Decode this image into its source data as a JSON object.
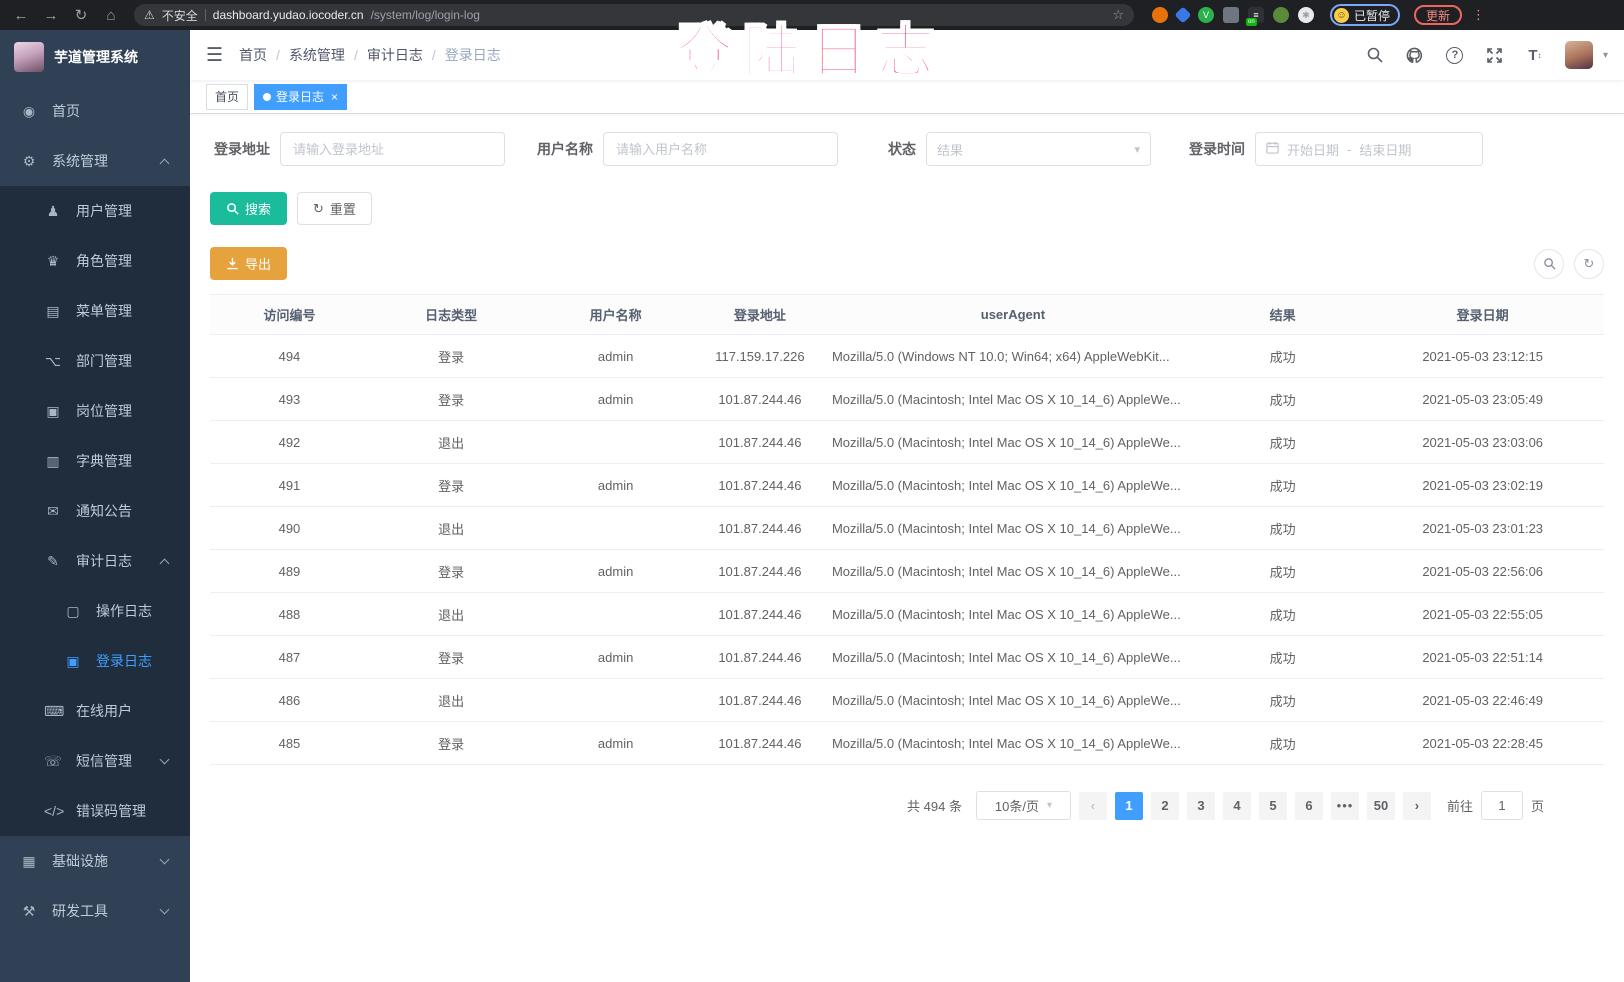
{
  "browser": {
    "back": "←",
    "forward": "→",
    "reload": "↻",
    "home": "⌂",
    "security_warning": "不安全",
    "url_domain": "dashboard.yudao.iocoder.cn",
    "url_path": "/system/log/login-log",
    "star": "☆",
    "extensions": [
      {
        "name": "orange-circle-extension-icon",
        "shape": "circle",
        "color": "#e8710a",
        "glyph": ""
      },
      {
        "name": "blue-diamond-extension-icon",
        "shape": "diamond",
        "color": "#3b78e7",
        "glyph": ""
      },
      {
        "name": "green-v-extension-icon",
        "shape": "circle",
        "color": "#2bb24c",
        "glyph": "V"
      },
      {
        "name": "grid-extension-icon",
        "shape": "square",
        "color": "#6f7680",
        "glyph": ""
      },
      {
        "name": "list-on-extension-icon",
        "shape": "square",
        "color": "#2d3136",
        "glyph": "≡",
        "badge": "on"
      },
      {
        "name": "leaf-extension-icon",
        "shape": "circle",
        "color": "#5b8a3c",
        "glyph": ""
      },
      {
        "name": "paw-extension-icon",
        "shape": "circle",
        "color": "#e8eaed",
        "glyph": "✱"
      }
    ],
    "profile_chip": "已暂停",
    "profile_face": "☺",
    "update_button": "更新",
    "menu_dots": "⋮"
  },
  "overlay": {
    "text": "登陆日志"
  },
  "sidebar": {
    "logo_title": "芋道管理系统",
    "icon_glyphs": {
      "dashboard-icon": "◉",
      "gear-icon": "⚙",
      "user-icon": "♟",
      "peoples-icon": "♛",
      "tree-table-icon": "▤",
      "tree-icon": "⌥",
      "post-icon": "▣",
      "dict-icon": "▥",
      "message-icon": "✉",
      "log-icon": "✎",
      "form-icon": "▢",
      "logininfor-icon": "▣",
      "online-icon": "⌨",
      "sms-icon": "☏",
      "code-icon": "</>",
      "infra-icon": "▦",
      "tool-icon": "⚒"
    },
    "items": [
      {
        "id": "home",
        "icon": "dashboard-icon",
        "label": "首页",
        "level": 1
      },
      {
        "id": "system",
        "icon": "gear-icon",
        "label": "系统管理",
        "level": 1,
        "chevron": "up"
      },
      {
        "id": "user",
        "icon": "user-icon",
        "label": "用户管理",
        "level": 2
      },
      {
        "id": "role",
        "icon": "peoples-icon",
        "label": "角色管理",
        "level": 2
      },
      {
        "id": "menu",
        "icon": "tree-table-icon",
        "label": "菜单管理",
        "level": 2
      },
      {
        "id": "dept",
        "icon": "tree-icon",
        "label": "部门管理",
        "level": 2
      },
      {
        "id": "post",
        "icon": "post-icon",
        "label": "岗位管理",
        "level": 2
      },
      {
        "id": "dict",
        "icon": "dict-icon",
        "label": "字典管理",
        "level": 2
      },
      {
        "id": "notice",
        "icon": "message-icon",
        "label": "通知公告",
        "level": 2
      },
      {
        "id": "audit-log",
        "icon": "log-icon",
        "label": "审计日志",
        "level": 2,
        "chevron": "up"
      },
      {
        "id": "operate-log",
        "icon": "form-icon",
        "label": "操作日志",
        "level": 3
      },
      {
        "id": "login-log",
        "icon": "logininfor-icon",
        "label": "登录日志",
        "level": 3,
        "active": true
      },
      {
        "id": "online-user",
        "icon": "online-icon",
        "label": "在线用户",
        "level": 2
      },
      {
        "id": "sms",
        "icon": "sms-icon",
        "label": "短信管理",
        "level": 2,
        "chevron": "down"
      },
      {
        "id": "error-code",
        "icon": "code-icon",
        "label": "错误码管理",
        "level": 2
      },
      {
        "id": "infra",
        "icon": "infra-icon",
        "label": "基础设施",
        "level": 1,
        "chevron": "down"
      },
      {
        "id": "dev-tool",
        "icon": "tool-icon",
        "label": "研发工具",
        "level": 1,
        "chevron": "down"
      }
    ]
  },
  "breadcrumb": {
    "items": [
      "首页",
      "系统管理",
      "审计日志",
      "登录日志"
    ]
  },
  "tabs": [
    {
      "label": "首页",
      "active": false
    },
    {
      "label": "登录日志",
      "active": true,
      "closable": true
    }
  ],
  "filters": {
    "login_address_label": "登录地址",
    "login_address_placeholder": "请输入登录地址",
    "username_label": "用户名称",
    "username_placeholder": "请输入用户名称",
    "status_label": "状态",
    "status_placeholder": "结果",
    "login_time_label": "登录时间",
    "date_start_placeholder": "开始日期",
    "date_separator": "-",
    "date_end_placeholder": "结束日期",
    "search_button": "搜索",
    "reset_button": "重置",
    "export_button": "导出"
  },
  "table": {
    "columns": [
      "访问编号",
      "日志类型",
      "用户名称",
      "登录地址",
      "userAgent",
      "结果",
      "登录日期"
    ],
    "rows": [
      [
        "494",
        "登录",
        "admin",
        "117.159.17.226",
        "Mozilla/5.0 (Windows NT 10.0; Win64; x64) AppleWebKit...",
        "成功",
        "2021-05-03 23:12:15"
      ],
      [
        "493",
        "登录",
        "admin",
        "101.87.244.46",
        "Mozilla/5.0 (Macintosh; Intel Mac OS X 10_14_6) AppleWe...",
        "成功",
        "2021-05-03 23:05:49"
      ],
      [
        "492",
        "退出",
        "",
        "101.87.244.46",
        "Mozilla/5.0 (Macintosh; Intel Mac OS X 10_14_6) AppleWe...",
        "成功",
        "2021-05-03 23:03:06"
      ],
      [
        "491",
        "登录",
        "admin",
        "101.87.244.46",
        "Mozilla/5.0 (Macintosh; Intel Mac OS X 10_14_6) AppleWe...",
        "成功",
        "2021-05-03 23:02:19"
      ],
      [
        "490",
        "退出",
        "",
        "101.87.244.46",
        "Mozilla/5.0 (Macintosh; Intel Mac OS X 10_14_6) AppleWe...",
        "成功",
        "2021-05-03 23:01:23"
      ],
      [
        "489",
        "登录",
        "admin",
        "101.87.244.46",
        "Mozilla/5.0 (Macintosh; Intel Mac OS X 10_14_6) AppleWe...",
        "成功",
        "2021-05-03 22:56:06"
      ],
      [
        "488",
        "退出",
        "",
        "101.87.244.46",
        "Mozilla/5.0 (Macintosh; Intel Mac OS X 10_14_6) AppleWe...",
        "成功",
        "2021-05-03 22:55:05"
      ],
      [
        "487",
        "登录",
        "admin",
        "101.87.244.46",
        "Mozilla/5.0 (Macintosh; Intel Mac OS X 10_14_6) AppleWe...",
        "成功",
        "2021-05-03 22:51:14"
      ],
      [
        "486",
        "退出",
        "",
        "101.87.244.46",
        "Mozilla/5.0 (Macintosh; Intel Mac OS X 10_14_6) AppleWe...",
        "成功",
        "2021-05-03 22:46:49"
      ],
      [
        "485",
        "登录",
        "admin",
        "101.87.244.46",
        "Mozilla/5.0 (Macintosh; Intel Mac OS X 10_14_6) AppleWe...",
        "成功",
        "2021-05-03 22:28:45"
      ]
    ]
  },
  "pagination": {
    "total": "共 494 条",
    "page_size": "10条/页",
    "prev": "‹",
    "next": "›",
    "pages": [
      {
        "label": "1",
        "active": true
      },
      {
        "label": "2"
      },
      {
        "label": "3"
      },
      {
        "label": "4"
      },
      {
        "label": "5"
      },
      {
        "label": "6"
      },
      {
        "label": "•••",
        "ellipsis": true
      },
      {
        "label": "50"
      }
    ],
    "goto_prefix": "前往",
    "goto_value": "1",
    "goto_suffix": "页"
  },
  "colors": {
    "accent": "#409eff",
    "search_button": "#1abc9c",
    "export_button": "#e6a23c",
    "overlay_pink": "#f43b67"
  }
}
